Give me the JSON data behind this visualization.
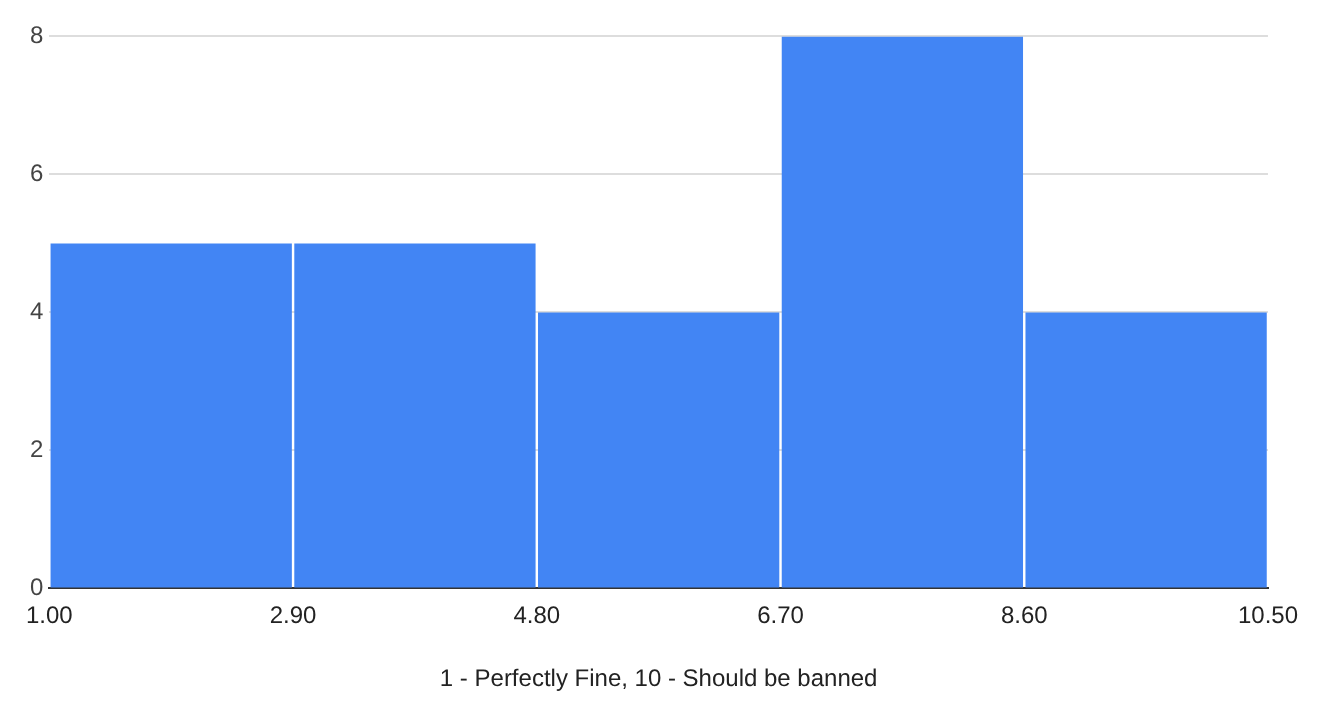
{
  "chart_data": {
    "type": "histogram",
    "xlabel": "1 - Perfectly Fine, 10 - Should be banned",
    "bins": [
      1,
      2.9,
      4.8,
      6.7,
      8.6,
      10.5
    ],
    "values": [
      5,
      5,
      4,
      8,
      4
    ],
    "color": "#4285f4",
    "xlim": [
      1,
      10.5
    ],
    "xticks": [
      {
        "value": 1,
        "label": "1.00"
      },
      {
        "value": 2.9,
        "label": "2.90"
      },
      {
        "value": 4.8,
        "label": "4.80"
      },
      {
        "value": 6.7,
        "label": "6.70"
      },
      {
        "value": 8.6,
        "label": "8.60"
      },
      {
        "value": 10.5,
        "label": "10.50"
      }
    ],
    "ylim": [
      0,
      8
    ],
    "yticks": [
      0,
      2,
      4,
      6,
      8
    ],
    "grid": "y"
  }
}
